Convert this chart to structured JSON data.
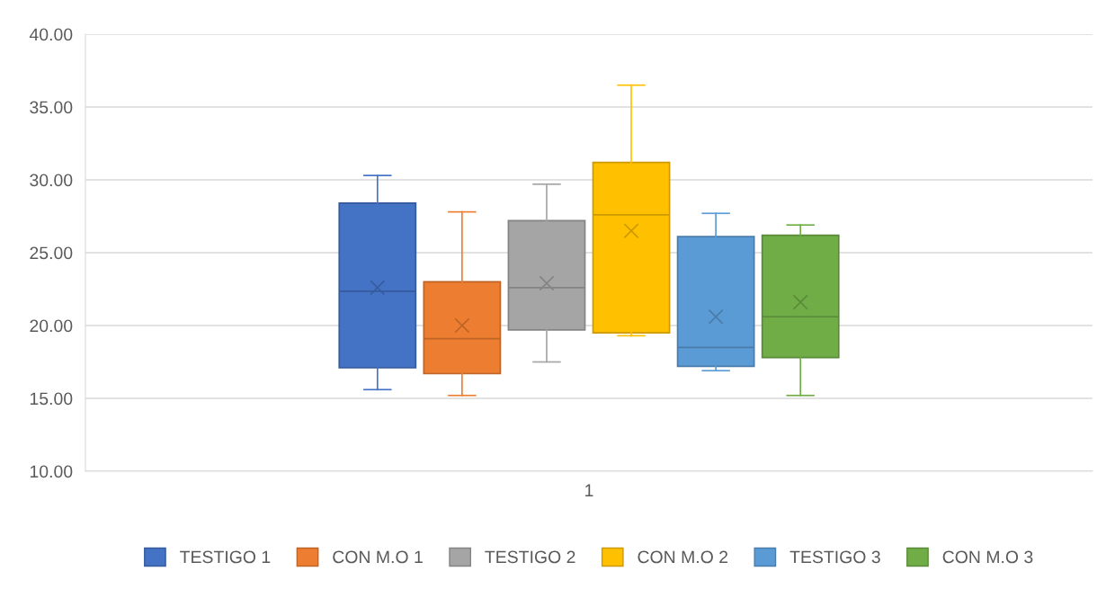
{
  "chart_data": {
    "type": "box",
    "categories": [
      "1"
    ],
    "series": [
      {
        "name": "TESTIGO 1",
        "color": "#4472c4",
        "boxes": [
          {
            "low": 15.6,
            "q1": 17.1,
            "median": 22.35,
            "q3": 28.4,
            "high": 30.3,
            "mean": 22.6
          }
        ]
      },
      {
        "name": "CON M.O 1",
        "color": "#ed7d31",
        "boxes": [
          {
            "low": 15.2,
            "q1": 16.7,
            "median": 19.1,
            "q3": 23.0,
            "high": 27.8,
            "mean": 20.0
          }
        ]
      },
      {
        "name": "TESTIGO 2",
        "color": "#a5a5a5",
        "boxes": [
          {
            "low": 17.5,
            "q1": 19.7,
            "median": 22.6,
            "q3": 27.2,
            "high": 29.7,
            "mean": 22.9
          }
        ]
      },
      {
        "name": "CON M.O 2",
        "color": "#ffc000",
        "boxes": [
          {
            "low": 19.3,
            "q1": 19.5,
            "median": 27.6,
            "q3": 31.2,
            "high": 36.5,
            "mean": 26.5
          }
        ]
      },
      {
        "name": "TESTIGO 3",
        "color": "#5b9bd5",
        "boxes": [
          {
            "low": 16.9,
            "q1": 17.2,
            "median": 18.5,
            "q3": 26.1,
            "high": 27.7,
            "mean": 20.6
          }
        ]
      },
      {
        "name": "CON M.O 3",
        "color": "#70ad47",
        "boxes": [
          {
            "low": 15.2,
            "q1": 17.8,
            "median": 20.6,
            "q3": 26.2,
            "high": 26.9,
            "mean": 21.6
          }
        ]
      }
    ],
    "ylim": [
      10,
      40
    ],
    "yticks": [
      {
        "value": 10,
        "label": "10.00"
      },
      {
        "value": 15,
        "label": "15.00"
      },
      {
        "value": 20,
        "label": "20.00"
      },
      {
        "value": 25,
        "label": "25.00"
      },
      {
        "value": 30,
        "label": "30.00"
      },
      {
        "value": 35,
        "label": "35.00"
      },
      {
        "value": 40,
        "label": "40.00"
      }
    ],
    "grid": "y",
    "legend": "bottom",
    "marker": "cross"
  }
}
